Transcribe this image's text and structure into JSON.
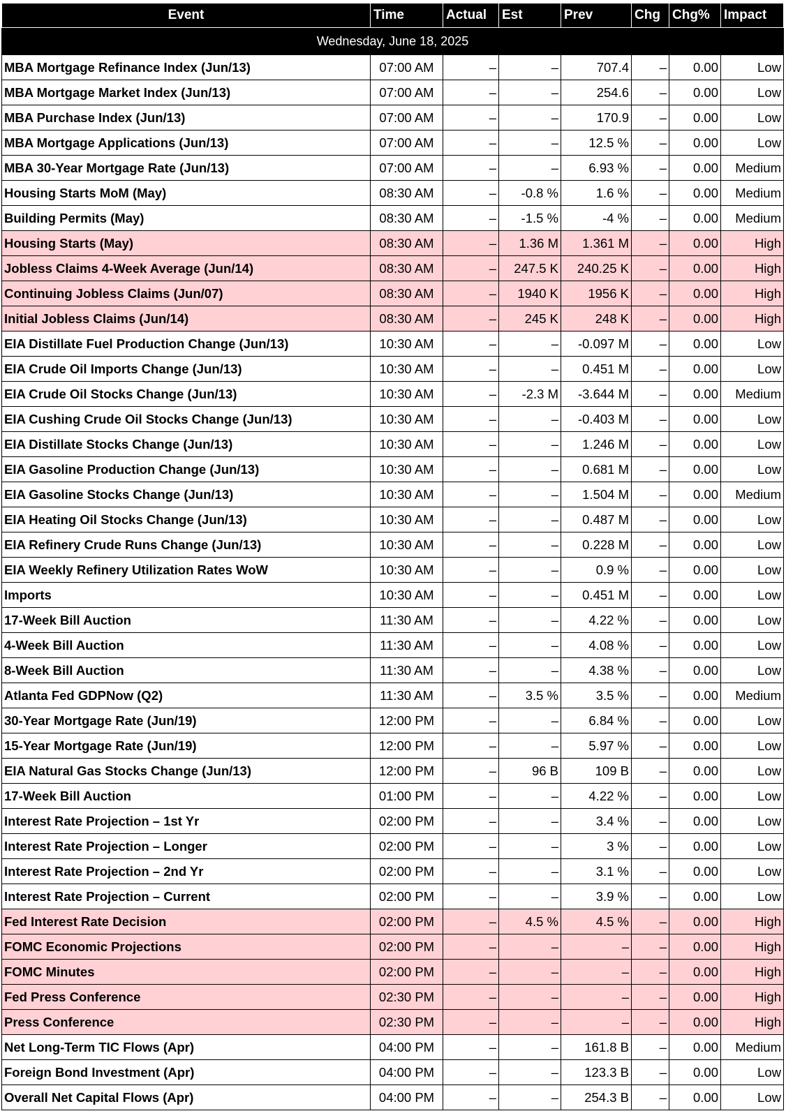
{
  "columns": {
    "event": "Event",
    "time": "Time",
    "actual": "Actual",
    "est": "Est",
    "prev": "Prev",
    "chg": "Chg",
    "chg_pct": "Chg%",
    "impact": "Impact"
  },
  "date_label": "Wednesday, June 18, 2025",
  "colors": {
    "header_bg": "#000000",
    "header_text": "#ffffff",
    "high_impact_row": "#ffd1d5"
  },
  "rows": [
    {
      "event": "MBA Mortgage Refinance Index (Jun/13)",
      "time": "07:00 AM",
      "actual": "–",
      "est": "–",
      "prev": "707.4",
      "chg": "–",
      "chg_pct": "0.00",
      "impact": "Low"
    },
    {
      "event": "MBA Mortgage Market Index (Jun/13)",
      "time": "07:00 AM",
      "actual": "–",
      "est": "–",
      "prev": "254.6",
      "chg": "–",
      "chg_pct": "0.00",
      "impact": "Low"
    },
    {
      "event": "MBA Purchase Index (Jun/13)",
      "time": "07:00 AM",
      "actual": "–",
      "est": "–",
      "prev": "170.9",
      "chg": "–",
      "chg_pct": "0.00",
      "impact": "Low"
    },
    {
      "event": "MBA Mortgage Applications (Jun/13)",
      "time": "07:00 AM",
      "actual": "–",
      "est": "–",
      "prev": "12.5 %",
      "chg": "–",
      "chg_pct": "0.00",
      "impact": "Low"
    },
    {
      "event": "MBA 30-Year Mortgage Rate (Jun/13)",
      "time": "07:00 AM",
      "actual": "–",
      "est": "–",
      "prev": "6.93 %",
      "chg": "–",
      "chg_pct": "0.00",
      "impact": "Medium"
    },
    {
      "event": "Housing Starts MoM (May)",
      "time": "08:30 AM",
      "actual": "–",
      "est": "-0.8 %",
      "prev": "1.6 %",
      "chg": "–",
      "chg_pct": "0.00",
      "impact": "Medium"
    },
    {
      "event": "Building Permits (May)",
      "time": "08:30 AM",
      "actual": "–",
      "est": "-1.5 %",
      "prev": "-4 %",
      "chg": "–",
      "chg_pct": "0.00",
      "impact": "Medium"
    },
    {
      "event": "Housing Starts (May)",
      "time": "08:30 AM",
      "actual": "–",
      "est": "1.36 M",
      "prev": "1.361 M",
      "chg": "–",
      "chg_pct": "0.00",
      "impact": "High"
    },
    {
      "event": "Jobless Claims 4-Week Average (Jun/14)",
      "time": "08:30 AM",
      "actual": "–",
      "est": "247.5 K",
      "prev": "240.25 K",
      "chg": "–",
      "chg_pct": "0.00",
      "impact": "High"
    },
    {
      "event": "Continuing Jobless Claims (Jun/07)",
      "time": "08:30 AM",
      "actual": "–",
      "est": "1940 K",
      "prev": "1956 K",
      "chg": "–",
      "chg_pct": "0.00",
      "impact": "High"
    },
    {
      "event": "Initial Jobless Claims (Jun/14)",
      "time": "08:30 AM",
      "actual": "–",
      "est": "245 K",
      "prev": "248 K",
      "chg": "–",
      "chg_pct": "0.00",
      "impact": "High"
    },
    {
      "event": "EIA Distillate Fuel Production Change (Jun/13)",
      "time": "10:30 AM",
      "actual": "–",
      "est": "–",
      "prev": "-0.097 M",
      "chg": "–",
      "chg_pct": "0.00",
      "impact": "Low"
    },
    {
      "event": "EIA Crude Oil Imports Change (Jun/13)",
      "time": "10:30 AM",
      "actual": "–",
      "est": "–",
      "prev": "0.451 M",
      "chg": "–",
      "chg_pct": "0.00",
      "impact": "Low"
    },
    {
      "event": "EIA Crude Oil Stocks Change (Jun/13)",
      "time": "10:30 AM",
      "actual": "–",
      "est": "-2.3 M",
      "prev": "-3.644 M",
      "chg": "–",
      "chg_pct": "0.00",
      "impact": "Medium"
    },
    {
      "event": "EIA Cushing Crude Oil Stocks Change (Jun/13)",
      "time": "10:30 AM",
      "actual": "–",
      "est": "–",
      "prev": "-0.403 M",
      "chg": "–",
      "chg_pct": "0.00",
      "impact": "Low"
    },
    {
      "event": "EIA Distillate Stocks Change (Jun/13)",
      "time": "10:30 AM",
      "actual": "–",
      "est": "–",
      "prev": "1.246 M",
      "chg": "–",
      "chg_pct": "0.00",
      "impact": "Low"
    },
    {
      "event": "EIA Gasoline Production Change (Jun/13)",
      "time": "10:30 AM",
      "actual": "–",
      "est": "–",
      "prev": "0.681 M",
      "chg": "–",
      "chg_pct": "0.00",
      "impact": "Low"
    },
    {
      "event": "EIA Gasoline Stocks Change (Jun/13)",
      "time": "10:30 AM",
      "actual": "–",
      "est": "–",
      "prev": "1.504 M",
      "chg": "–",
      "chg_pct": "0.00",
      "impact": "Medium"
    },
    {
      "event": "EIA Heating Oil Stocks Change (Jun/13)",
      "time": "10:30 AM",
      "actual": "–",
      "est": "–",
      "prev": "0.487 M",
      "chg": "–",
      "chg_pct": "0.00",
      "impact": "Low"
    },
    {
      "event": "EIA Refinery Crude Runs Change (Jun/13)",
      "time": "10:30 AM",
      "actual": "–",
      "est": "–",
      "prev": "0.228 M",
      "chg": "–",
      "chg_pct": "0.00",
      "impact": "Low"
    },
    {
      "event": "EIA Weekly Refinery Utilization Rates WoW",
      "time": "10:30 AM",
      "actual": "–",
      "est": "–",
      "prev": "0.9 %",
      "chg": "–",
      "chg_pct": "0.00",
      "impact": "Low"
    },
    {
      "event": "Imports",
      "time": "10:30 AM",
      "actual": "–",
      "est": "–",
      "prev": "0.451 M",
      "chg": "–",
      "chg_pct": "0.00",
      "impact": "Low"
    },
    {
      "event": "17-Week Bill Auction",
      "time": "11:30 AM",
      "actual": "–",
      "est": "–",
      "prev": "4.22 %",
      "chg": "–",
      "chg_pct": "0.00",
      "impact": "Low"
    },
    {
      "event": "4-Week Bill Auction",
      "time": "11:30 AM",
      "actual": "–",
      "est": "–",
      "prev": "4.08 %",
      "chg": "–",
      "chg_pct": "0.00",
      "impact": "Low"
    },
    {
      "event": "8-Week Bill Auction",
      "time": "11:30 AM",
      "actual": "–",
      "est": "–",
      "prev": "4.38 %",
      "chg": "–",
      "chg_pct": "0.00",
      "impact": "Low"
    },
    {
      "event": "Atlanta Fed GDPNow (Q2)",
      "time": "11:30 AM",
      "actual": "–",
      "est": "3.5 %",
      "prev": "3.5 %",
      "chg": "–",
      "chg_pct": "0.00",
      "impact": "Medium"
    },
    {
      "event": "30-Year Mortgage Rate (Jun/19)",
      "time": "12:00 PM",
      "actual": "–",
      "est": "–",
      "prev": "6.84 %",
      "chg": "–",
      "chg_pct": "0.00",
      "impact": "Low"
    },
    {
      "event": "15-Year Mortgage Rate (Jun/19)",
      "time": "12:00 PM",
      "actual": "–",
      "est": "–",
      "prev": "5.97 %",
      "chg": "–",
      "chg_pct": "0.00",
      "impact": "Low"
    },
    {
      "event": "EIA Natural Gas Stocks Change (Jun/13)",
      "time": "12:00 PM",
      "actual": "–",
      "est": "96 B",
      "prev": "109 B",
      "chg": "–",
      "chg_pct": "0.00",
      "impact": "Low"
    },
    {
      "event": "17-Week Bill Auction",
      "time": "01:00 PM",
      "actual": "–",
      "est": "–",
      "prev": "4.22 %",
      "chg": "–",
      "chg_pct": "0.00",
      "impact": "Low"
    },
    {
      "event": "Interest Rate Projection – 1st Yr",
      "time": "02:00 PM",
      "actual": "–",
      "est": "–",
      "prev": "3.4 %",
      "chg": "–",
      "chg_pct": "0.00",
      "impact": "Low"
    },
    {
      "event": "Interest Rate Projection – Longer",
      "time": "02:00 PM",
      "actual": "–",
      "est": "–",
      "prev": "3 %",
      "chg": "–",
      "chg_pct": "0.00",
      "impact": "Low"
    },
    {
      "event": "Interest Rate Projection – 2nd Yr",
      "time": "02:00 PM",
      "actual": "–",
      "est": "–",
      "prev": "3.1 %",
      "chg": "–",
      "chg_pct": "0.00",
      "impact": "Low"
    },
    {
      "event": "Interest Rate Projection – Current",
      "time": "02:00 PM",
      "actual": "–",
      "est": "–",
      "prev": "3.9 %",
      "chg": "–",
      "chg_pct": "0.00",
      "impact": "Low"
    },
    {
      "event": "Fed Interest Rate Decision",
      "time": "02:00 PM",
      "actual": "–",
      "est": "4.5 %",
      "prev": "4.5 %",
      "chg": "–",
      "chg_pct": "0.00",
      "impact": "High"
    },
    {
      "event": "FOMC Economic Projections",
      "time": "02:00 PM",
      "actual": "–",
      "est": "–",
      "prev": "–",
      "chg": "–",
      "chg_pct": "0.00",
      "impact": "High"
    },
    {
      "event": "FOMC Minutes",
      "time": "02:00 PM",
      "actual": "–",
      "est": "–",
      "prev": "–",
      "chg": "–",
      "chg_pct": "0.00",
      "impact": "High"
    },
    {
      "event": "Fed Press Conference",
      "time": "02:30 PM",
      "actual": "–",
      "est": "–",
      "prev": "–",
      "chg": "–",
      "chg_pct": "0.00",
      "impact": "High"
    },
    {
      "event": "Press Conference",
      "time": "02:30 PM",
      "actual": "–",
      "est": "–",
      "prev": "–",
      "chg": "–",
      "chg_pct": "0.00",
      "impact": "High"
    },
    {
      "event": "Net Long-Term TIC Flows (Apr)",
      "time": "04:00 PM",
      "actual": "–",
      "est": "–",
      "prev": "161.8 B",
      "chg": "–",
      "chg_pct": "0.00",
      "impact": "Medium"
    },
    {
      "event": "Foreign Bond Investment (Apr)",
      "time": "04:00 PM",
      "actual": "–",
      "est": "–",
      "prev": "123.3 B",
      "chg": "–",
      "chg_pct": "0.00",
      "impact": "Low"
    },
    {
      "event": "Overall Net Capital Flows (Apr)",
      "time": "04:00 PM",
      "actual": "–",
      "est": "–",
      "prev": "254.3 B",
      "chg": "–",
      "chg_pct": "0.00",
      "impact": "Low"
    }
  ]
}
